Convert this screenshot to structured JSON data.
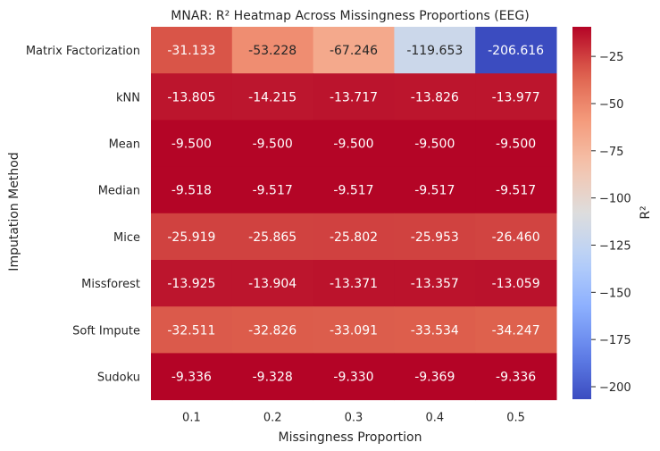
{
  "chart_data": {
    "type": "heatmap",
    "title": "MNAR: R² Heatmap Across Missingness Proportions (EEG)",
    "xlabel": "Missingness Proportion",
    "ylabel": "Imputation Method",
    "colorbar_label": "R²",
    "colormap": "coolwarm",
    "vmin": -206.616,
    "vmax": -9.328,
    "x": [
      "0.1",
      "0.2",
      "0.3",
      "0.4",
      "0.5"
    ],
    "y": [
      "Matrix Factorization",
      "kNN",
      "Mean",
      "Median",
      "Mice",
      "Missforest",
      "Soft Impute",
      "Sudoku"
    ],
    "values": [
      [
        -31.133,
        -53.228,
        -67.246,
        -119.653,
        -206.616
      ],
      [
        -13.805,
        -14.215,
        -13.717,
        -13.826,
        -13.977
      ],
      [
        -9.5,
        -9.5,
        -9.5,
        -9.5,
        -9.5
      ],
      [
        -9.518,
        -9.517,
        -9.517,
        -9.517,
        -9.517
      ],
      [
        -25.919,
        -25.865,
        -25.802,
        -25.953,
        -26.46
      ],
      [
        -13.925,
        -13.904,
        -13.371,
        -13.357,
        -13.059
      ],
      [
        -32.511,
        -32.826,
        -33.091,
        -33.534,
        -34.247
      ],
      [
        -9.336,
        -9.328,
        -9.33,
        -9.369,
        -9.336
      ]
    ],
    "cell_labels": [
      [
        "-31.133",
        "-53.228",
        "-67.246",
        "-119.653",
        "-206.616"
      ],
      [
        "-13.805",
        "-14.215",
        "-13.717",
        "-13.826",
        "-13.977"
      ],
      [
        "-9.500",
        "-9.500",
        "-9.500",
        "-9.500",
        "-9.500"
      ],
      [
        "-9.518",
        "-9.517",
        "-9.517",
        "-9.517",
        "-9.517"
      ],
      [
        "-25.919",
        "-25.865",
        "-25.802",
        "-25.953",
        "-26.460"
      ],
      [
        "-13.925",
        "-13.904",
        "-13.371",
        "-13.357",
        "-13.059"
      ],
      [
        "-32.511",
        "-32.826",
        "-33.091",
        "-33.534",
        "-34.247"
      ],
      [
        "-9.336",
        "-9.328",
        "-9.330",
        "-9.369",
        "-9.336"
      ]
    ],
    "colorbar_ticks": [
      -25,
      -50,
      -75,
      -100,
      -125,
      -150,
      -175,
      -200
    ],
    "colorbar_tick_labels": [
      "−25",
      "−50",
      "−75",
      "−100",
      "−125",
      "−150",
      "−175",
      "−200"
    ],
    "grid": false
  }
}
